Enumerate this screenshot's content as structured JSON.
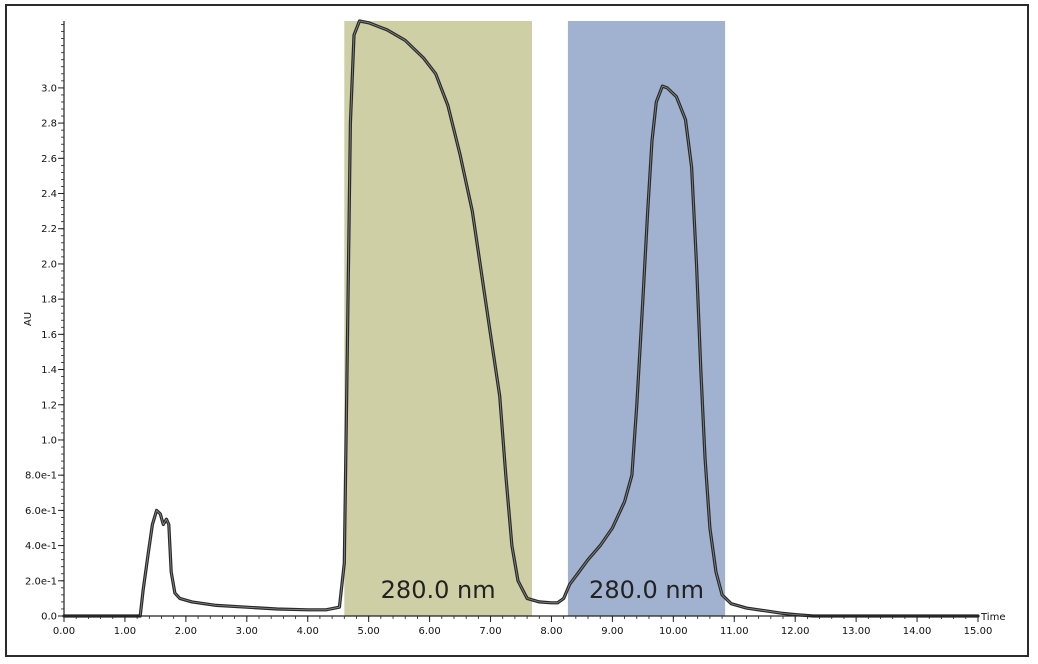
{
  "chart_data": {
    "type": "line",
    "xlabel": "Time",
    "ylabel": "AU",
    "xlim": [
      0,
      15
    ],
    "ylim": [
      0,
      3.38
    ],
    "x_ticks": [
      0,
      1,
      2,
      3,
      4,
      5,
      6,
      7,
      8,
      9,
      10,
      11,
      12,
      13,
      14,
      15
    ],
    "x_tick_labels": [
      "0.00",
      "1.00",
      "2.00",
      "3.00",
      "4.00",
      "5.00",
      "6.00",
      "7.00",
      "8.00",
      "9.00",
      "10.00",
      "11.00",
      "12.00",
      "13.00",
      "14.00",
      "15.00"
    ],
    "y_ticks": [
      0,
      0.2,
      0.4,
      0.6,
      0.8,
      1.0,
      1.2,
      1.4,
      1.6,
      1.8,
      2.0,
      2.2,
      2.4,
      2.6,
      2.8,
      3.0
    ],
    "y_tick_labels": [
      "0.0",
      "2.0e-1",
      "4.0e-1",
      "6.0e-1",
      "8.0e-1",
      "1.0",
      "1.2",
      "1.4",
      "1.6",
      "1.8",
      "2.0",
      "2.2",
      "2.4",
      "2.6",
      "2.8",
      "3.0"
    ],
    "grid": false,
    "bands": [
      {
        "x_start": 4.6,
        "x_end": 7.68,
        "color": "#cfcfa6",
        "label": "280.0 nm"
      },
      {
        "x_start": 8.27,
        "x_end": 10.85,
        "color": "#a0b2cf",
        "label": "280.0 nm"
      }
    ],
    "series": [
      {
        "color": "#2a2a2a",
        "points": [
          [
            0.0,
            0.0
          ],
          [
            1.0,
            0.0
          ],
          [
            1.25,
            0.0
          ],
          [
            1.3,
            0.15
          ],
          [
            1.38,
            0.35
          ],
          [
            1.45,
            0.52
          ],
          [
            1.52,
            0.6
          ],
          [
            1.58,
            0.58
          ],
          [
            1.63,
            0.52
          ],
          [
            1.68,
            0.55
          ],
          [
            1.72,
            0.52
          ],
          [
            1.76,
            0.25
          ],
          [
            1.82,
            0.13
          ],
          [
            1.9,
            0.1
          ],
          [
            2.1,
            0.08
          ],
          [
            2.5,
            0.06
          ],
          [
            3.0,
            0.05
          ],
          [
            3.5,
            0.04
          ],
          [
            4.0,
            0.035
          ],
          [
            4.3,
            0.035
          ],
          [
            4.52,
            0.05
          ],
          [
            4.6,
            0.3
          ],
          [
            4.65,
            1.5
          ],
          [
            4.7,
            2.8
          ],
          [
            4.76,
            3.3
          ],
          [
            4.85,
            3.38
          ],
          [
            5.0,
            3.37
          ],
          [
            5.3,
            3.33
          ],
          [
            5.6,
            3.27
          ],
          [
            5.9,
            3.17
          ],
          [
            6.1,
            3.08
          ],
          [
            6.3,
            2.9
          ],
          [
            6.5,
            2.62
          ],
          [
            6.7,
            2.3
          ],
          [
            6.85,
            1.95
          ],
          [
            7.0,
            1.6
          ],
          [
            7.15,
            1.25
          ],
          [
            7.25,
            0.8
          ],
          [
            7.35,
            0.4
          ],
          [
            7.45,
            0.2
          ],
          [
            7.6,
            0.1
          ],
          [
            7.8,
            0.08
          ],
          [
            8.0,
            0.075
          ],
          [
            8.1,
            0.075
          ],
          [
            8.2,
            0.1
          ],
          [
            8.3,
            0.18
          ],
          [
            8.45,
            0.25
          ],
          [
            8.6,
            0.32
          ],
          [
            8.8,
            0.4
          ],
          [
            9.0,
            0.5
          ],
          [
            9.2,
            0.65
          ],
          [
            9.32,
            0.8
          ],
          [
            9.4,
            1.2
          ],
          [
            9.5,
            1.8
          ],
          [
            9.58,
            2.3
          ],
          [
            9.65,
            2.7
          ],
          [
            9.72,
            2.92
          ],
          [
            9.82,
            3.01
          ],
          [
            9.9,
            3.0
          ],
          [
            10.05,
            2.95
          ],
          [
            10.2,
            2.82
          ],
          [
            10.3,
            2.55
          ],
          [
            10.38,
            2.0
          ],
          [
            10.45,
            1.4
          ],
          [
            10.52,
            0.9
          ],
          [
            10.6,
            0.5
          ],
          [
            10.7,
            0.25
          ],
          [
            10.8,
            0.12
          ],
          [
            10.95,
            0.07
          ],
          [
            11.2,
            0.045
          ],
          [
            11.5,
            0.03
          ],
          [
            11.8,
            0.015
          ],
          [
            12.0,
            0.008
          ],
          [
            12.3,
            0.0
          ],
          [
            15.0,
            0.0
          ]
        ]
      }
    ]
  }
}
